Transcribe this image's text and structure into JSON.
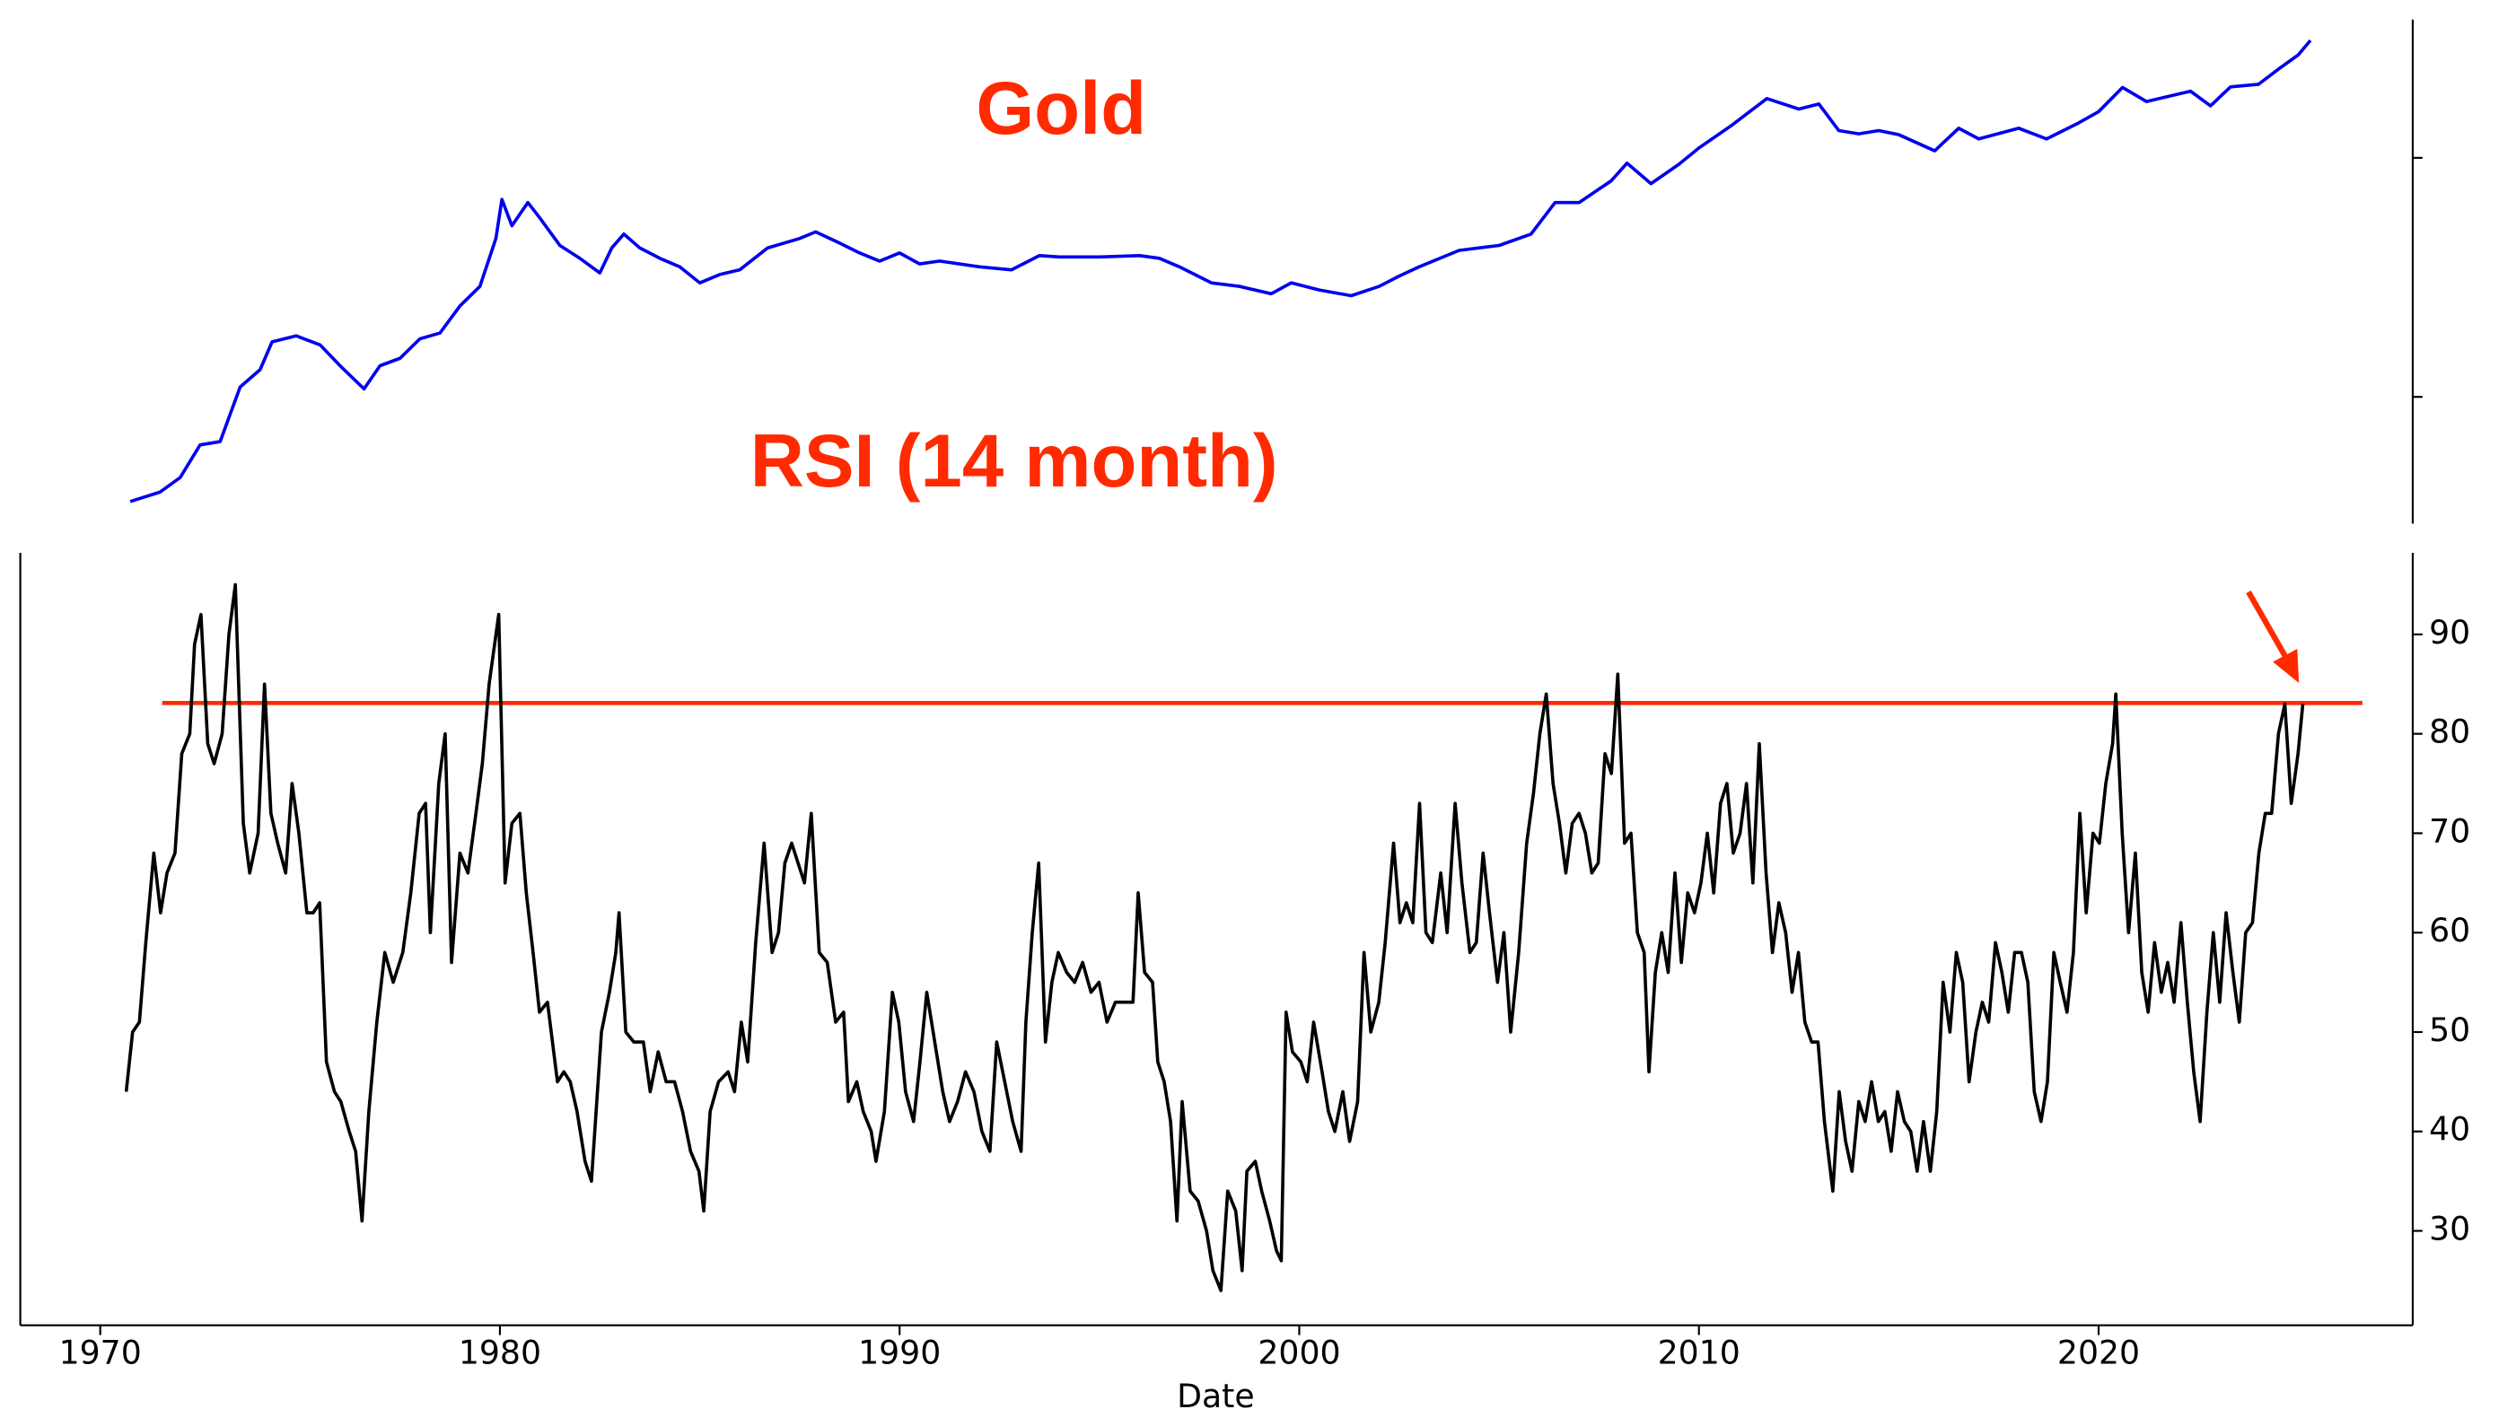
{
  "chart_data": [
    {
      "type": "line",
      "title": "Gold",
      "title_color": "#ff2a00",
      "color": "#0000ee",
      "log_scale": true,
      "xlim": [
        1968.0,
        2027.86
      ],
      "ylim": [
        29.5,
        3790
      ],
      "yticks": [
        100,
        1000
      ],
      "x": [
        1970.75,
        1971.5,
        1972.0,
        1972.5,
        1973.0,
        1973.5,
        1974.0,
        1974.3,
        1974.9,
        1975.5,
        1976.0,
        1976.6,
        1977.0,
        1977.5,
        1978.0,
        1978.5,
        1979.0,
        1979.5,
        1979.9,
        1980.05,
        1980.3,
        1980.7,
        1981.0,
        1981.5,
        1982.0,
        1982.5,
        1982.8,
        1983.1,
        1983.5,
        1984.0,
        1984.5,
        1985.0,
        1985.5,
        1986.0,
        1986.7,
        1987.5,
        1987.9,
        1988.5,
        1989.0,
        1989.5,
        1990.0,
        1990.5,
        1991.0,
        1992.0,
        1992.8,
        1993.5,
        1994.0,
        1995.0,
        1996.0,
        1996.5,
        1997.0,
        1997.8,
        1998.5,
        1999.3,
        1999.8,
        2000.5,
        2001.3,
        2002.0,
        2002.5,
        2003.0,
        2004.0,
        2005.0,
        2005.8,
        2006.4,
        2007.0,
        2007.8,
        2008.2,
        2008.8,
        2009.5,
        2010.0,
        2010.8,
        2011.7,
        2012.5,
        2013.0,
        2013.5,
        2014.0,
        2014.5,
        2015.0,
        2015.9,
        2016.5,
        2017.0,
        2018.0,
        2018.7,
        2019.5,
        2020.0,
        2020.6,
        2021.2,
        2021.7,
        2022.3,
        2022.8,
        2023.3,
        2024.0,
        2024.5,
        2025.0,
        2025.3
      ],
      "values": [
        36.5,
        40,
        46,
        63,
        65,
        110,
        130,
        170,
        180,
        165,
        135,
        108,
        135,
        145,
        175,
        185,
        240,
        290,
        460,
        670,
        520,
        650,
        560,
        430,
        380,
        330,
        420,
        480,
        420,
        380,
        350,
        300,
        325,
        340,
        420,
        460,
        490,
        440,
        400,
        370,
        400,
        360,
        370,
        350,
        340,
        390,
        385,
        385,
        390,
        380,
        350,
        300,
        290,
        270,
        300,
        280,
        265,
        290,
        320,
        350,
        410,
        430,
        480,
        650,
        650,
        800,
        950,
        780,
        940,
        1100,
        1360,
        1770,
        1600,
        1680,
        1300,
        1260,
        1300,
        1250,
        1070,
        1330,
        1200,
        1330,
        1200,
        1400,
        1560,
        1970,
        1720,
        1800,
        1900,
        1650,
        1980,
        2030,
        2350,
        2700,
        3100
      ]
    },
    {
      "type": "line",
      "title": "RSI (14 month)",
      "title_color": "#ff2a00",
      "color": "#000000",
      "x_label": "Date",
      "xlim": [
        1968.0,
        2027.86
      ],
      "xticks": [
        1970,
        1980,
        1990,
        2000,
        2010,
        2020
      ],
      "ylim": [
        20.5,
        98.2
      ],
      "yticks": [
        30,
        40,
        50,
        60,
        70,
        80,
        90
      ],
      "reference_line": {
        "value": 83.1,
        "xlim": [
          1971.55,
          2026.6
        ],
        "color": "#ff2a00"
      },
      "x": [
        1970.65,
        1970.81,
        1970.98,
        1971.14,
        1971.34,
        1971.51,
        1971.67,
        1971.87,
        1972.04,
        1972.24,
        1972.36,
        1972.52,
        1972.69,
        1972.85,
        1973.05,
        1973.22,
        1973.38,
        1973.58,
        1973.74,
        1973.95,
        1974.11,
        1974.27,
        1974.44,
        1974.64,
        1974.8,
        1974.97,
        1975.17,
        1975.33,
        1975.49,
        1975.66,
        1975.86,
        1976.02,
        1976.23,
        1976.39,
        1976.55,
        1976.72,
        1976.92,
        1977.12,
        1977.33,
        1977.57,
        1977.77,
        1977.98,
        1978.14,
        1978.26,
        1978.47,
        1978.63,
        1978.79,
        1979.0,
        1979.2,
        1979.4,
        1979.56,
        1979.73,
        1979.97,
        1980.13,
        1980.3,
        1980.5,
        1980.66,
        1980.83,
        1980.99,
        1981.19,
        1981.44,
        1981.6,
        1981.76,
        1981.93,
        1982.13,
        1982.29,
        1982.54,
        1982.74,
        1982.9,
        1982.98,
        1983.15,
        1983.35,
        1983.59,
        1983.76,
        1983.96,
        1984.16,
        1984.37,
        1984.57,
        1984.77,
        1984.98,
        1985.1,
        1985.26,
        1985.47,
        1985.71,
        1985.87,
        1986.04,
        1986.2,
        1986.4,
        1986.61,
        1986.81,
        1986.97,
        1987.13,
        1987.3,
        1987.46,
        1987.62,
        1987.79,
        1987.99,
        1988.19,
        1988.4,
        1988.6,
        1988.72,
        1988.93,
        1989.09,
        1989.29,
        1989.41,
        1989.62,
        1989.82,
        1989.98,
        1990.15,
        1990.35,
        1990.51,
        1990.68,
        1990.88,
        1991.08,
        1991.25,
        1991.45,
        1991.65,
        1991.86,
        1992.06,
        1992.26,
        1992.43,
        1992.63,
        1992.83,
        1993.04,
        1993.16,
        1993.32,
        1993.48,
        1993.65,
        1993.81,
        1993.97,
        1994.18,
        1994.38,
        1994.58,
        1994.79,
        1994.99,
        1995.19,
        1995.4,
        1995.6,
        1995.84,
        1995.97,
        1996.13,
        1996.33,
        1996.46,
        1996.62,
        1996.78,
        1996.94,
        1997.07,
        1997.27,
        1997.47,
        1997.68,
        1997.84,
        1998.04,
        1998.21,
        1998.41,
        1998.57,
        1998.69,
        1998.9,
        1999.06,
        1999.26,
        1999.43,
        1999.55,
        1999.67,
        1999.83,
        2000.04,
        2000.2,
        2000.36,
        2000.57,
        2000.73,
        2000.89,
        2001.09,
        2001.26,
        2001.46,
        2001.62,
        2001.79,
        2001.99,
        2002.15,
        2002.36,
        2002.52,
        2002.68,
        2002.84,
        2003.01,
        2003.17,
        2003.33,
        2003.54,
        2003.7,
        2003.9,
        2004.07,
        2004.27,
        2004.43,
        2004.6,
        2004.76,
        2004.96,
        2005.12,
        2005.29,
        2005.49,
        2005.69,
        2005.86,
        2006.02,
        2006.18,
        2006.35,
        2006.51,
        2006.67,
        2006.83,
        2007.0,
        2007.16,
        2007.32,
        2007.48,
        2007.65,
        2007.81,
        2007.97,
        2008.14,
        2008.3,
        2008.46,
        2008.63,
        2008.75,
        2008.91,
        2009.07,
        2009.23,
        2009.4,
        2009.56,
        2009.72,
        2009.89,
        2010.05,
        2010.21,
        2010.37,
        2010.54,
        2010.7,
        2010.86,
        2011.03,
        2011.19,
        2011.35,
        2011.51,
        2011.68,
        2011.84,
        2012.0,
        2012.17,
        2012.33,
        2012.49,
        2012.65,
        2012.82,
        2012.98,
        2013.14,
        2013.35,
        2013.51,
        2013.67,
        2013.83,
        2014.0,
        2014.16,
        2014.32,
        2014.49,
        2014.65,
        2014.81,
        2014.97,
        2015.14,
        2015.3,
        2015.46,
        2015.62,
        2015.79,
        2015.95,
        2016.11,
        2016.28,
        2016.44,
        2016.6,
        2016.76,
        2016.93,
        2017.09,
        2017.25,
        2017.42,
        2017.58,
        2017.74,
        2017.9,
        2018.07,
        2018.23,
        2018.39,
        2018.56,
        2018.72,
        2018.88,
        2019.04,
        2019.21,
        2019.37,
        2019.53,
        2019.69,
        2019.86,
        2020.02,
        2020.18,
        2020.35,
        2020.43,
        2020.59,
        2020.75,
        2020.92,
        2021.08,
        2021.24,
        2021.4,
        2021.57,
        2021.73,
        2021.89,
        2022.06,
        2022.22,
        2022.38,
        2022.54,
        2022.71,
        2022.87,
        2023.03,
        2023.19,
        2023.36,
        2023.52,
        2023.68,
        2023.85,
        2024.01,
        2024.17,
        2024.33,
        2024.5,
        2024.66,
        2024.82,
        2024.99,
        2025.11
      ],
      "values": [
        44,
        50,
        51,
        59,
        68,
        62,
        66,
        68,
        78,
        80,
        89,
        92,
        79,
        77,
        80,
        90,
        95,
        71,
        66,
        70,
        85,
        72,
        69,
        66,
        75,
        70,
        62,
        62,
        63,
        47,
        44,
        43,
        40,
        38,
        31,
        42,
        51,
        58,
        55,
        58,
        64,
        72,
        73,
        60,
        75,
        80,
        57,
        68,
        66,
        72,
        77,
        85,
        92,
        65,
        71,
        72,
        64,
        58,
        52,
        53,
        45,
        46,
        45,
        42,
        37,
        35,
        50,
        54,
        58,
        62,
        50,
        49,
        49,
        44,
        48,
        45,
        45,
        42,
        38,
        36,
        32,
        42,
        45,
        46,
        44,
        51,
        47,
        59,
        69,
        58,
        60,
        67,
        69,
        67,
        65,
        72,
        58,
        57,
        51,
        52,
        43,
        45,
        42,
        40,
        37,
        42,
        54,
        51,
        44,
        41,
        47,
        54,
        49,
        44,
        41,
        43,
        46,
        44,
        40,
        38,
        49,
        45,
        41,
        38,
        51,
        60,
        67,
        49,
        55,
        58,
        56,
        55,
        57,
        54,
        55,
        51,
        53,
        53,
        53,
        64,
        56,
        55,
        47,
        45,
        41,
        31,
        43,
        34,
        33,
        30,
        26,
        24,
        34,
        32,
        26,
        36,
        37,
        34,
        31,
        28,
        27,
        52,
        48,
        47,
        45,
        51,
        46,
        42,
        40,
        44,
        39,
        43,
        58,
        50,
        53,
        59,
        69,
        61,
        63,
        61,
        73,
        60,
        59,
        66,
        60,
        73,
        65,
        58,
        59,
        68,
        62,
        55,
        60,
        50,
        58,
        69,
        74,
        80,
        84,
        75,
        71,
        66,
        71,
        72,
        70,
        66,
        67,
        78,
        76,
        86,
        69,
        70,
        60,
        58,
        46,
        56,
        60,
        56,
        66,
        57,
        64,
        62,
        65,
        70,
        64,
        73,
        75,
        68,
        70,
        75,
        65,
        79,
        66,
        58,
        63,
        60,
        54,
        58,
        51,
        49,
        49,
        41,
        34,
        44,
        39,
        36,
        43,
        41,
        45,
        41,
        42,
        38,
        44,
        41,
        40,
        36,
        41,
        36,
        42,
        55,
        50,
        58,
        55,
        45,
        50,
        53,
        51,
        59,
        56,
        52,
        58,
        58,
        55,
        44,
        41,
        45,
        58,
        55,
        52,
        58,
        72,
        62,
        70,
        69,
        75,
        79,
        84,
        70,
        60,
        68,
        56,
        52,
        59,
        54,
        57,
        53,
        61,
        53,
        46,
        41,
        52,
        60,
        53,
        62,
        56,
        51,
        60,
        61,
        68,
        72,
        72,
        80,
        83,
        73,
        78,
        83
      ]
    }
  ]
}
